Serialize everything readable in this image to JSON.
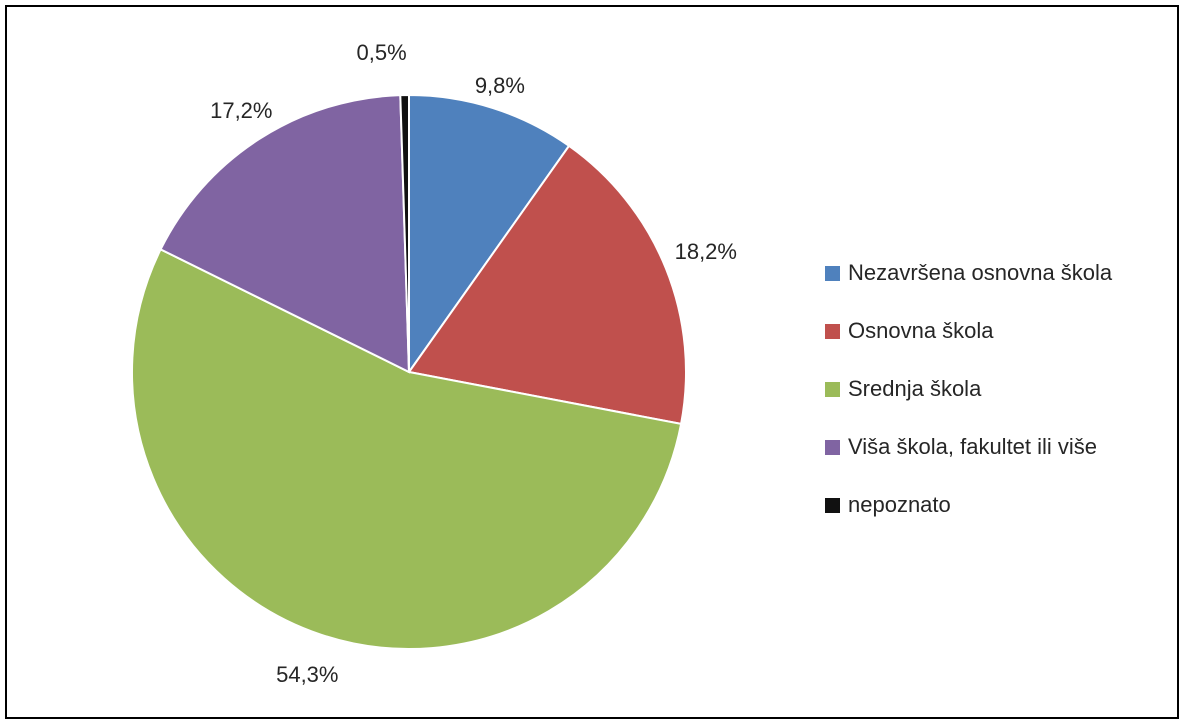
{
  "chart_data": {
    "type": "pie",
    "categories": [
      "Nezavršena osnovna škola",
      "Osnovna škola",
      "Srednja škola",
      "Viša škola, fakultet ili više",
      "nepoznato"
    ],
    "values": [
      9.8,
      18.2,
      54.3,
      17.2,
      0.5
    ],
    "data_labels": [
      "9,8%",
      "18,2%",
      "54,3%",
      "17,2%",
      "0,5%"
    ],
    "colors": [
      "#4F81BD",
      "#C0504D",
      "#9BBB59",
      "#8064A2",
      "#111111"
    ],
    "start_angle_deg": 0,
    "direction": "clockwise",
    "legend_position": "right"
  }
}
